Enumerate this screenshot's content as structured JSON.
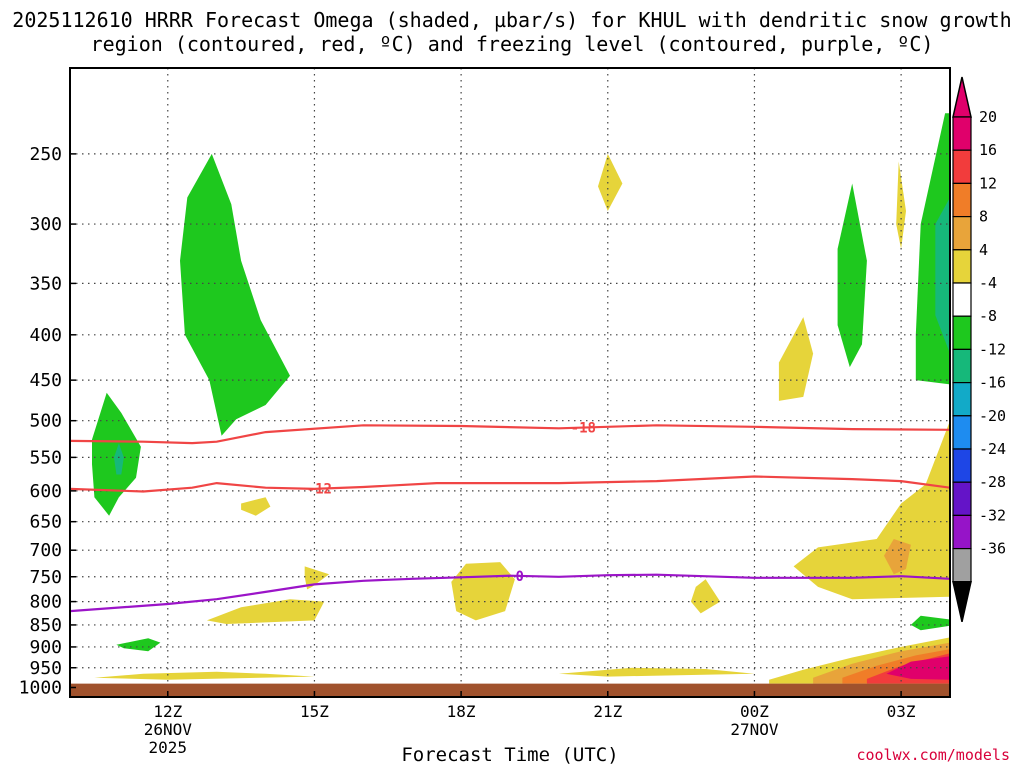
{
  "title": "2025112610 HRRR Forecast Omega (shaded, µbar/s) for KHUL with dendritic snow growth region (contoured, red, ºC) and freezing level (contoured, purple, ºC)",
  "credit": "coolwx.com/models",
  "chart_data": {
    "type": "contour",
    "xlabel": "Forecast Time (UTC)",
    "x_ticks": [
      {
        "label": "12Z",
        "sub1": "26NOV",
        "sub2": "2025",
        "hour": 12
      },
      {
        "label": "15Z",
        "sub1": "",
        "sub2": "",
        "hour": 15
      },
      {
        "label": "18Z",
        "sub1": "",
        "sub2": "",
        "hour": 18
      },
      {
        "label": "21Z",
        "sub1": "",
        "sub2": "",
        "hour": 21
      },
      {
        "label": "00Z",
        "sub1": "27NOV",
        "sub2": "",
        "hour": 24
      },
      {
        "label": "03Z",
        "sub1": "",
        "sub2": "",
        "hour": 27
      }
    ],
    "x_range_hours": [
      10,
      28
    ],
    "y_ticks": [
      250,
      300,
      350,
      400,
      450,
      500,
      550,
      600,
      650,
      700,
      750,
      800,
      850,
      900,
      950,
      1000
    ],
    "y_range_hPa": [
      200,
      1025
    ],
    "y_scale": "log-pressure",
    "surface_pressure_hPa": 990,
    "colorbar": {
      "labels": [
        "20",
        "16",
        "12",
        "8",
        "4",
        "-4",
        "-8",
        "-12",
        "-16",
        "-20",
        "-24",
        "-28",
        "-32",
        "-36"
      ],
      "colors": [
        "#e0006b",
        "#f23c3c",
        "#f07d28",
        "#e8a43a",
        "#e6d43a",
        "#ffffff",
        "#1ec81e",
        "#16b87a",
        "#12aac8",
        "#1e8cf0",
        "#1e46e6",
        "#6414c8",
        "#9614c8",
        "#a0a0a0"
      ]
    },
    "contours": [
      {
        "label": "-18",
        "color": "#f04545",
        "hour_at_label": 20.5,
        "points": [
          [
            10.0,
            527
          ],
          [
            11.5,
            528
          ],
          [
            12.5,
            530
          ],
          [
            13.0,
            528
          ],
          [
            14.0,
            515
          ],
          [
            16.0,
            506
          ],
          [
            18.0,
            507
          ],
          [
            20.0,
            510
          ],
          [
            22.0,
            506
          ],
          [
            24.0,
            508
          ],
          [
            26.0,
            511
          ],
          [
            28.0,
            512
          ]
        ]
      },
      {
        "label": "-12",
        "color": "#f04545",
        "hour_at_label": 15.1,
        "points": [
          [
            10.0,
            597
          ],
          [
            11.5,
            601
          ],
          [
            12.5,
            595
          ],
          [
            13.0,
            588
          ],
          [
            14.0,
            595
          ],
          [
            15.0,
            597
          ],
          [
            16.0,
            594
          ],
          [
            17.5,
            588
          ],
          [
            19.0,
            588
          ],
          [
            20.0,
            588
          ],
          [
            22.0,
            585
          ],
          [
            24.0,
            578
          ],
          [
            26.0,
            582
          ],
          [
            27.0,
            585
          ],
          [
            28.0,
            595
          ]
        ]
      },
      {
        "label": "0",
        "color": "#9b14c8",
        "hour_at_label": 19.2,
        "points": [
          [
            10.0,
            820
          ],
          [
            12.0,
            805
          ],
          [
            13.0,
            795
          ],
          [
            14.0,
            780
          ],
          [
            15.0,
            765
          ],
          [
            16.0,
            758
          ],
          [
            17.0,
            754
          ],
          [
            18.0,
            751
          ],
          [
            19.0,
            748
          ],
          [
            20.0,
            750
          ],
          [
            21.0,
            747
          ],
          [
            22.0,
            746
          ],
          [
            24.0,
            752
          ],
          [
            25.0,
            752
          ],
          [
            26.0,
            752
          ],
          [
            27.0,
            749
          ],
          [
            28.0,
            754
          ]
        ]
      }
    ],
    "shaded": [
      {
        "color": "#1ec81e",
        "points": [
          [
            10.45,
            525
          ],
          [
            10.75,
            465
          ],
          [
            11.05,
            490
          ],
          [
            11.45,
            535
          ],
          [
            11.35,
            580
          ],
          [
            11.0,
            610
          ],
          [
            10.8,
            640
          ],
          [
            10.5,
            610
          ],
          [
            10.45,
            560
          ]
        ]
      },
      {
        "color": "#16b87a",
        "points": [
          [
            10.9,
            550
          ],
          [
            11.0,
            530
          ],
          [
            11.1,
            550
          ],
          [
            11.05,
            575
          ],
          [
            10.95,
            575
          ]
        ]
      },
      {
        "color": "#1ec81e",
        "points": [
          [
            12.4,
            280
          ],
          [
            12.9,
            250
          ],
          [
            13.3,
            285
          ],
          [
            13.5,
            330
          ],
          [
            13.9,
            385
          ],
          [
            14.5,
            445
          ],
          [
            14.0,
            480
          ],
          [
            13.4,
            498
          ],
          [
            13.1,
            520
          ],
          [
            12.85,
            450
          ],
          [
            12.35,
            400
          ],
          [
            12.25,
            330
          ]
        ]
      },
      {
        "color": "#e6d43a",
        "points": [
          [
            13.5,
            620
          ],
          [
            14.0,
            610
          ],
          [
            14.1,
            625
          ],
          [
            13.8,
            640
          ],
          [
            13.5,
            630
          ]
        ]
      },
      {
        "color": "#e6d43a",
        "points": [
          [
            14.8,
            730
          ],
          [
            15.3,
            745
          ],
          [
            14.95,
            770
          ],
          [
            14.85,
            775
          ],
          [
            14.8,
            750
          ]
        ]
      },
      {
        "color": "#e6d43a",
        "points": [
          [
            12.8,
            840
          ],
          [
            13.5,
            812
          ],
          [
            14.5,
            795
          ],
          [
            15.2,
            800
          ],
          [
            15.0,
            840
          ],
          [
            13.2,
            848
          ]
        ]
      },
      {
        "color": "#1ec81e",
        "points": [
          [
            10.95,
            895
          ],
          [
            11.6,
            880
          ],
          [
            11.85,
            890
          ],
          [
            11.6,
            910
          ],
          [
            11.1,
            903
          ]
        ]
      },
      {
        "color": "#e6d43a",
        "points": [
          [
            17.8,
            760
          ],
          [
            18.1,
            725
          ],
          [
            18.8,
            722
          ],
          [
            19.1,
            755
          ],
          [
            18.9,
            820
          ],
          [
            18.3,
            840
          ],
          [
            17.9,
            820
          ]
        ]
      },
      {
        "color": "#e6d43a",
        "points": [
          [
            21.0,
            250
          ],
          [
            21.3,
            270
          ],
          [
            21.0,
            290
          ],
          [
            20.8,
            272
          ]
        ]
      },
      {
        "color": "#e6d43a",
        "points": [
          [
            22.8,
            770
          ],
          [
            23.0,
            755
          ],
          [
            23.3,
            800
          ],
          [
            22.9,
            825
          ],
          [
            22.7,
            800
          ]
        ]
      },
      {
        "color": "#e6d43a",
        "points": [
          [
            24.5,
            430
          ],
          [
            25.0,
            382
          ],
          [
            25.2,
            420
          ],
          [
            25.0,
            470
          ],
          [
            24.5,
            475
          ]
        ]
      },
      {
        "color": "#1ec81e",
        "points": [
          [
            25.7,
            320
          ],
          [
            26.0,
            270
          ],
          [
            26.3,
            330
          ],
          [
            26.2,
            410
          ],
          [
            25.95,
            435
          ],
          [
            25.7,
            390
          ]
        ]
      },
      {
        "color": "#e6d43a",
        "points": [
          [
            26.9,
            300
          ],
          [
            26.95,
            255
          ],
          [
            27.1,
            290
          ],
          [
            27.0,
            320
          ]
        ]
      },
      {
        "color": "#1ec81e",
        "points": [
          [
            27.3,
            400
          ],
          [
            27.4,
            300
          ],
          [
            27.9,
            225
          ],
          [
            28.0,
            225
          ],
          [
            28.0,
            455
          ],
          [
            27.3,
            450
          ]
        ]
      },
      {
        "color": "#16b87a",
        "points": [
          [
            27.7,
            380
          ],
          [
            27.7,
            300
          ],
          [
            28.0,
            280
          ],
          [
            28.0,
            420
          ]
        ]
      },
      {
        "color": "#1ec81e",
        "points": [
          [
            27.2,
            850
          ],
          [
            27.4,
            830
          ],
          [
            28.0,
            838
          ],
          [
            28.0,
            852
          ],
          [
            27.4,
            862
          ]
        ]
      },
      {
        "color": "#e6d43a",
        "points": [
          [
            24.8,
            730
          ],
          [
            25.3,
            695
          ],
          [
            26.5,
            680
          ],
          [
            27.0,
            620
          ],
          [
            27.5,
            590
          ],
          [
            28.0,
            500
          ],
          [
            28.0,
            790
          ],
          [
            26.0,
            795
          ],
          [
            25.3,
            770
          ]
        ]
      },
      {
        "color": "#e8a43a",
        "points": [
          [
            26.65,
            710
          ],
          [
            26.85,
            680
          ],
          [
            27.2,
            690
          ],
          [
            27.1,
            735
          ],
          [
            26.85,
            745
          ]
        ]
      },
      {
        "color": "#e6d43a",
        "points": [
          [
            20.0,
            965
          ],
          [
            21.5,
            950
          ],
          [
            23.0,
            953
          ],
          [
            24.0,
            965
          ],
          [
            21.0,
            972
          ]
        ]
      },
      {
        "color": "#e6d43a",
        "points": [
          [
            10.5,
            975
          ],
          [
            11.5,
            965
          ],
          [
            13.0,
            960
          ],
          [
            14.0,
            965
          ],
          [
            15.0,
            972
          ],
          [
            12.0,
            980
          ]
        ]
      },
      {
        "color": "#e6d43a",
        "points": [
          [
            24.3,
            980
          ],
          [
            25.0,
            955
          ],
          [
            26.0,
            925
          ],
          [
            27.0,
            900
          ],
          [
            28.0,
            878
          ],
          [
            28.0,
            990
          ],
          [
            24.3,
            990
          ]
        ]
      },
      {
        "color": "#e8a43a",
        "points": [
          [
            25.2,
            975
          ],
          [
            26.0,
            940
          ],
          [
            27.0,
            910
          ],
          [
            28.0,
            890
          ],
          [
            28.0,
            990
          ],
          [
            25.2,
            990
          ]
        ]
      },
      {
        "color": "#f07d28",
        "points": [
          [
            25.8,
            975
          ],
          [
            26.5,
            945
          ],
          [
            27.3,
            920
          ],
          [
            28.0,
            905
          ],
          [
            28.0,
            990
          ],
          [
            25.8,
            990
          ]
        ]
      },
      {
        "color": "#f23c3c",
        "points": [
          [
            26.3,
            978
          ],
          [
            27.0,
            945
          ],
          [
            28.0,
            915
          ],
          [
            28.0,
            990
          ],
          [
            26.3,
            990
          ]
        ]
      },
      {
        "color": "#e0006b",
        "points": [
          [
            26.7,
            965
          ],
          [
            27.2,
            935
          ],
          [
            28.0,
            922
          ],
          [
            28.0,
            980
          ],
          [
            27.2,
            978
          ]
        ]
      }
    ]
  }
}
